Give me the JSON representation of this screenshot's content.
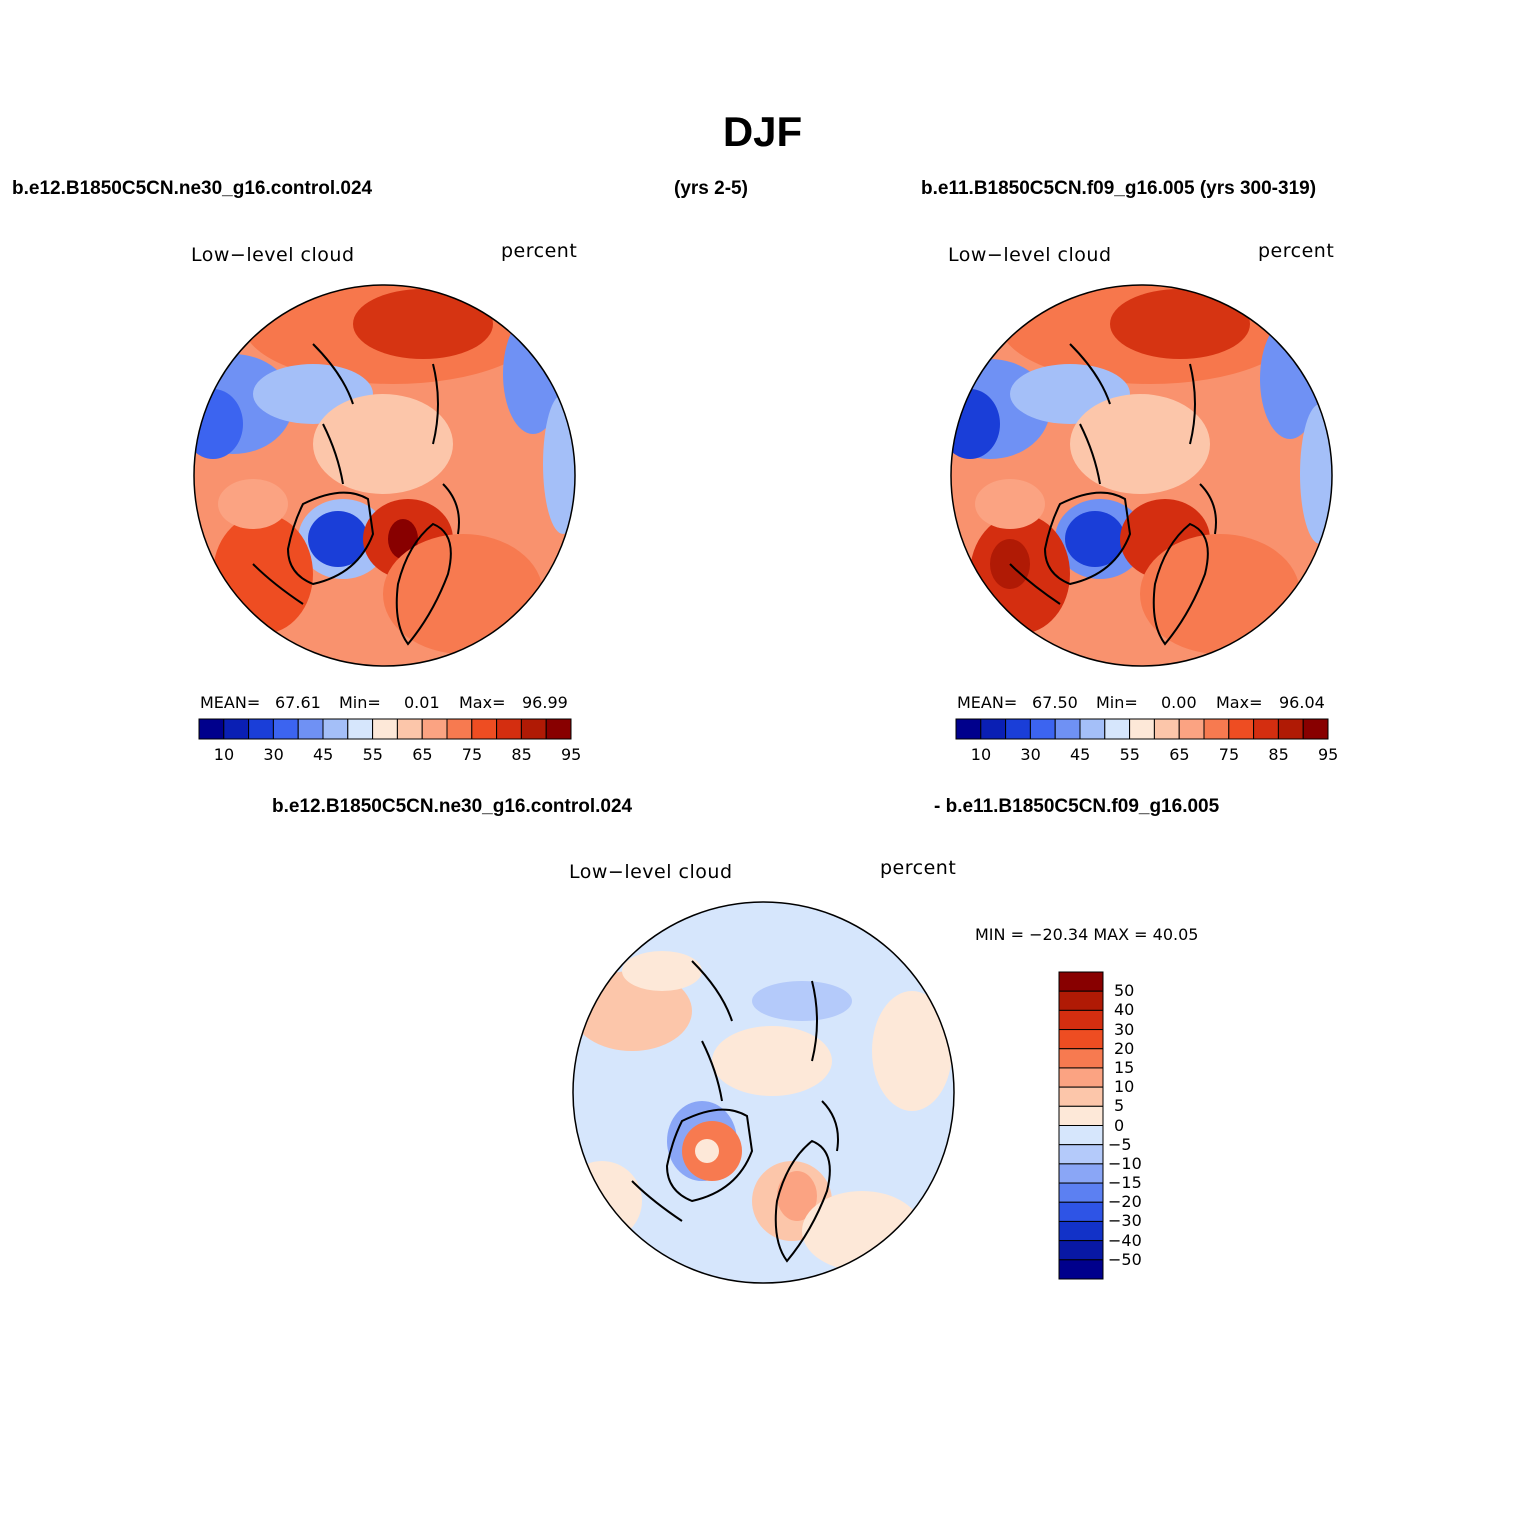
{
  "title": "DJF",
  "header": {
    "case1": "b.e12.B1850C5CN.ne30_g16.control.024",
    "case1_years": "(yrs 2-5)",
    "case2": "b.e11.B1850C5CN.f09_g16.005 (yrs 300-319)",
    "diff_case1": "b.e12.B1850C5CN.ne30_g16.control.024",
    "diff_case2": "- b.e11.B1850C5CN.f09_g16.005"
  },
  "panels": [
    {
      "id": "panel-case1",
      "variable": "Low−level cloud",
      "units": "percent",
      "stats": {
        "mean_label": "MEAN=",
        "mean": "67.61",
        "min_label": "Min=",
        "min": "0.01",
        "max_label": "Max=",
        "max": "96.99"
      }
    },
    {
      "id": "panel-case2",
      "variable": "Low−level cloud",
      "units": "percent",
      "stats": {
        "mean_label": "MEAN=",
        "mean": "67.50",
        "min_label": "Min=",
        "min": "0.00",
        "max_label": "Max=",
        "max": "96.04"
      }
    },
    {
      "id": "panel-diff",
      "variable": "Low−level cloud",
      "units": "percent",
      "minmax": "MIN = −20.34 MAX =  40.05"
    }
  ],
  "colorbar_abs": {
    "colors": [
      "#00008c",
      "#0a1fb4",
      "#1a3ed8",
      "#3c64f0",
      "#6f91f4",
      "#a4bff8",
      "#d6e6fc",
      "#fde8d8",
      "#fcc6aa",
      "#fba382",
      "#f77a50",
      "#ee4d22",
      "#d42e10",
      "#b01a05",
      "#880000"
    ],
    "ticks": [
      "10",
      "30",
      "45",
      "55",
      "65",
      "75",
      "85",
      "95"
    ]
  },
  "colorbar_diff": {
    "colors": [
      "#880000",
      "#b01a05",
      "#d42e10",
      "#ee4d22",
      "#f77a50",
      "#fba382",
      "#fcc6aa",
      "#fde8d8",
      "#d6e6fc",
      "#b4cafa",
      "#8aa6f6",
      "#5c80f2",
      "#2e54e6",
      "#1232c8",
      "#0818a4",
      "#00008c"
    ],
    "ticks": [
      "50",
      "40",
      "30",
      "20",
      "15",
      "10",
      "5",
      "0",
      "−5",
      "−10",
      "−15",
      "−20",
      "−30",
      "−40",
      "−50"
    ]
  }
}
